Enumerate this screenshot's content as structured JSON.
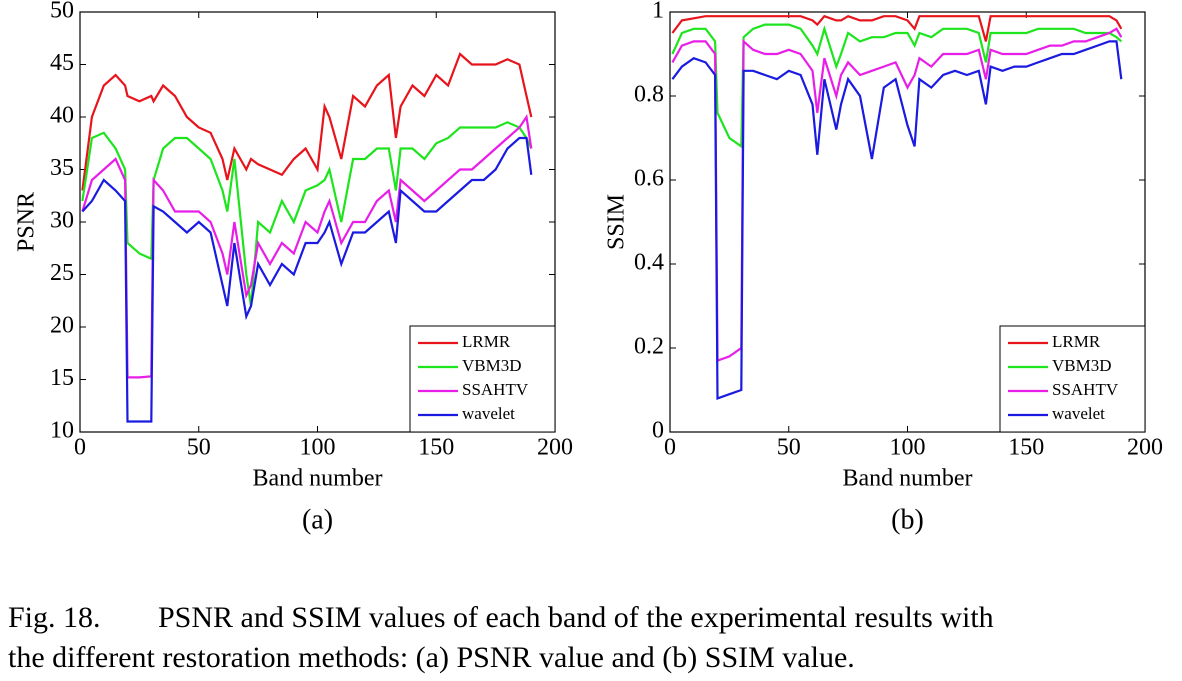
{
  "chart_data": [
    {
      "type": "line",
      "panel_label": "(a)",
      "xlabel": "Band number",
      "ylabel": "PSNR",
      "xlim": [
        0,
        200
      ],
      "xticks": [
        0,
        50,
        100,
        150,
        200
      ],
      "ylim": [
        10,
        50
      ],
      "yticks": [
        10,
        15,
        20,
        25,
        30,
        35,
        40,
        45,
        50
      ],
      "legend": "lower right",
      "x": [
        1,
        5,
        10,
        15,
        19,
        20,
        25,
        30,
        31,
        35,
        40,
        45,
        50,
        55,
        60,
        62,
        65,
        70,
        72,
        75,
        80,
        85,
        90,
        95,
        100,
        103,
        105,
        110,
        115,
        120,
        125,
        130,
        133,
        135,
        140,
        145,
        150,
        155,
        160,
        165,
        170,
        175,
        180,
        185,
        188,
        190
      ],
      "series": [
        {
          "name": "LRMR",
          "color": "#e8141c",
          "values": [
            33,
            40,
            43,
            44,
            43,
            42,
            41.5,
            42,
            41.5,
            43,
            42,
            40,
            39,
            38.5,
            36,
            34,
            37,
            35,
            36,
            35.5,
            35,
            34.5,
            36,
            37,
            35,
            41,
            40,
            36,
            42,
            41,
            43,
            44,
            38,
            41,
            43,
            42,
            44,
            43,
            46,
            45,
            45,
            45,
            45.5,
            45,
            42,
            40
          ]
        },
        {
          "name": "VBM3D",
          "color": "#1ee41e",
          "values": [
            32,
            38,
            38.5,
            37,
            35,
            28,
            27,
            26.5,
            34,
            37,
            38,
            38,
            37,
            36,
            33,
            31,
            36,
            25,
            22,
            30,
            29,
            32,
            30,
            33,
            33.5,
            34,
            35,
            30,
            36,
            36,
            37,
            37,
            33,
            37,
            37,
            36,
            37.5,
            38,
            39,
            39,
            39,
            39,
            39.5,
            39,
            38,
            37
          ]
        },
        {
          "name": "SSAHTV",
          "color": "#e81ee8",
          "values": [
            31,
            34,
            35,
            36,
            34,
            15.2,
            15.2,
            15.3,
            34,
            33,
            31,
            31,
            31,
            30,
            27,
            25,
            30,
            23,
            24,
            28,
            26,
            28,
            27,
            30,
            29,
            31,
            32,
            28,
            30,
            30,
            32,
            33,
            30,
            34,
            33,
            32,
            33,
            34,
            35,
            35,
            36,
            37,
            38,
            39,
            40,
            37
          ]
        },
        {
          "name": "wavelet",
          "color": "#1a1ae0",
          "values": [
            31,
            32,
            34,
            33,
            32,
            11,
            11,
            11,
            31.5,
            31,
            30,
            29,
            30,
            29,
            24,
            22,
            28,
            21,
            22,
            26,
            24,
            26,
            25,
            28,
            28,
            29,
            30,
            26,
            29,
            29,
            30,
            31,
            28,
            33,
            32,
            31,
            31,
            32,
            33,
            34,
            34,
            35,
            37,
            38,
            38,
            34.5
          ]
        }
      ]
    },
    {
      "type": "line",
      "panel_label": "(b)",
      "xlabel": "Band number",
      "ylabel": "SSIM",
      "xlim": [
        0,
        200
      ],
      "xticks": [
        0,
        50,
        100,
        150,
        200
      ],
      "ylim": [
        0,
        1
      ],
      "yticks": [
        0,
        0.2,
        0.4,
        0.6,
        0.8,
        1
      ],
      "legend": "lower right",
      "x": [
        1,
        5,
        10,
        15,
        19,
        20,
        25,
        30,
        31,
        35,
        40,
        45,
        50,
        55,
        60,
        62,
        65,
        70,
        72,
        75,
        80,
        85,
        90,
        95,
        100,
        103,
        105,
        110,
        115,
        120,
        125,
        130,
        133,
        135,
        140,
        145,
        150,
        155,
        160,
        165,
        170,
        175,
        180,
        185,
        188,
        190
      ],
      "series": [
        {
          "name": "LRMR",
          "color": "#e8141c",
          "values": [
            0.95,
            0.98,
            0.985,
            0.99,
            0.99,
            0.99,
            0.99,
            0.99,
            0.99,
            0.99,
            0.99,
            0.99,
            0.99,
            0.99,
            0.98,
            0.97,
            0.99,
            0.98,
            0.98,
            0.99,
            0.98,
            0.98,
            0.99,
            0.99,
            0.98,
            0.96,
            0.99,
            0.99,
            0.99,
            0.99,
            0.99,
            0.99,
            0.93,
            0.99,
            0.99,
            0.99,
            0.99,
            0.99,
            0.99,
            0.99,
            0.99,
            0.99,
            0.99,
            0.99,
            0.98,
            0.96
          ]
        },
        {
          "name": "VBM3D",
          "color": "#1ee41e",
          "values": [
            0.9,
            0.95,
            0.96,
            0.96,
            0.93,
            0.76,
            0.7,
            0.68,
            0.94,
            0.96,
            0.97,
            0.97,
            0.97,
            0.96,
            0.92,
            0.9,
            0.96,
            0.87,
            0.9,
            0.95,
            0.93,
            0.94,
            0.94,
            0.95,
            0.95,
            0.92,
            0.95,
            0.94,
            0.96,
            0.96,
            0.96,
            0.95,
            0.88,
            0.95,
            0.95,
            0.95,
            0.95,
            0.96,
            0.96,
            0.96,
            0.96,
            0.95,
            0.95,
            0.95,
            0.94,
            0.93
          ]
        },
        {
          "name": "SSAHTV",
          "color": "#e81ee8",
          "values": [
            0.88,
            0.92,
            0.93,
            0.93,
            0.9,
            0.17,
            0.18,
            0.2,
            0.93,
            0.91,
            0.9,
            0.9,
            0.91,
            0.9,
            0.86,
            0.76,
            0.89,
            0.8,
            0.85,
            0.88,
            0.85,
            0.86,
            0.87,
            0.88,
            0.82,
            0.85,
            0.89,
            0.87,
            0.9,
            0.9,
            0.9,
            0.91,
            0.84,
            0.91,
            0.9,
            0.9,
            0.9,
            0.91,
            0.92,
            0.92,
            0.93,
            0.93,
            0.94,
            0.95,
            0.96,
            0.94
          ]
        },
        {
          "name": "wavelet",
          "color": "#1a1ae0",
          "values": [
            0.84,
            0.87,
            0.89,
            0.88,
            0.85,
            0.08,
            0.09,
            0.1,
            0.86,
            0.86,
            0.85,
            0.84,
            0.86,
            0.85,
            0.78,
            0.66,
            0.84,
            0.72,
            0.78,
            0.84,
            0.8,
            0.65,
            0.82,
            0.84,
            0.73,
            0.68,
            0.84,
            0.82,
            0.85,
            0.86,
            0.85,
            0.86,
            0.78,
            0.87,
            0.86,
            0.87,
            0.87,
            0.88,
            0.89,
            0.9,
            0.9,
            0.91,
            0.92,
            0.93,
            0.93,
            0.84
          ]
        }
      ]
    }
  ],
  "caption": {
    "label": "Fig. 18.",
    "lines": [
      "PSNR and SSIM values of each band of the experimental results with",
      "the different restoration methods: (a) PSNR value and (b) SSIM value."
    ]
  }
}
